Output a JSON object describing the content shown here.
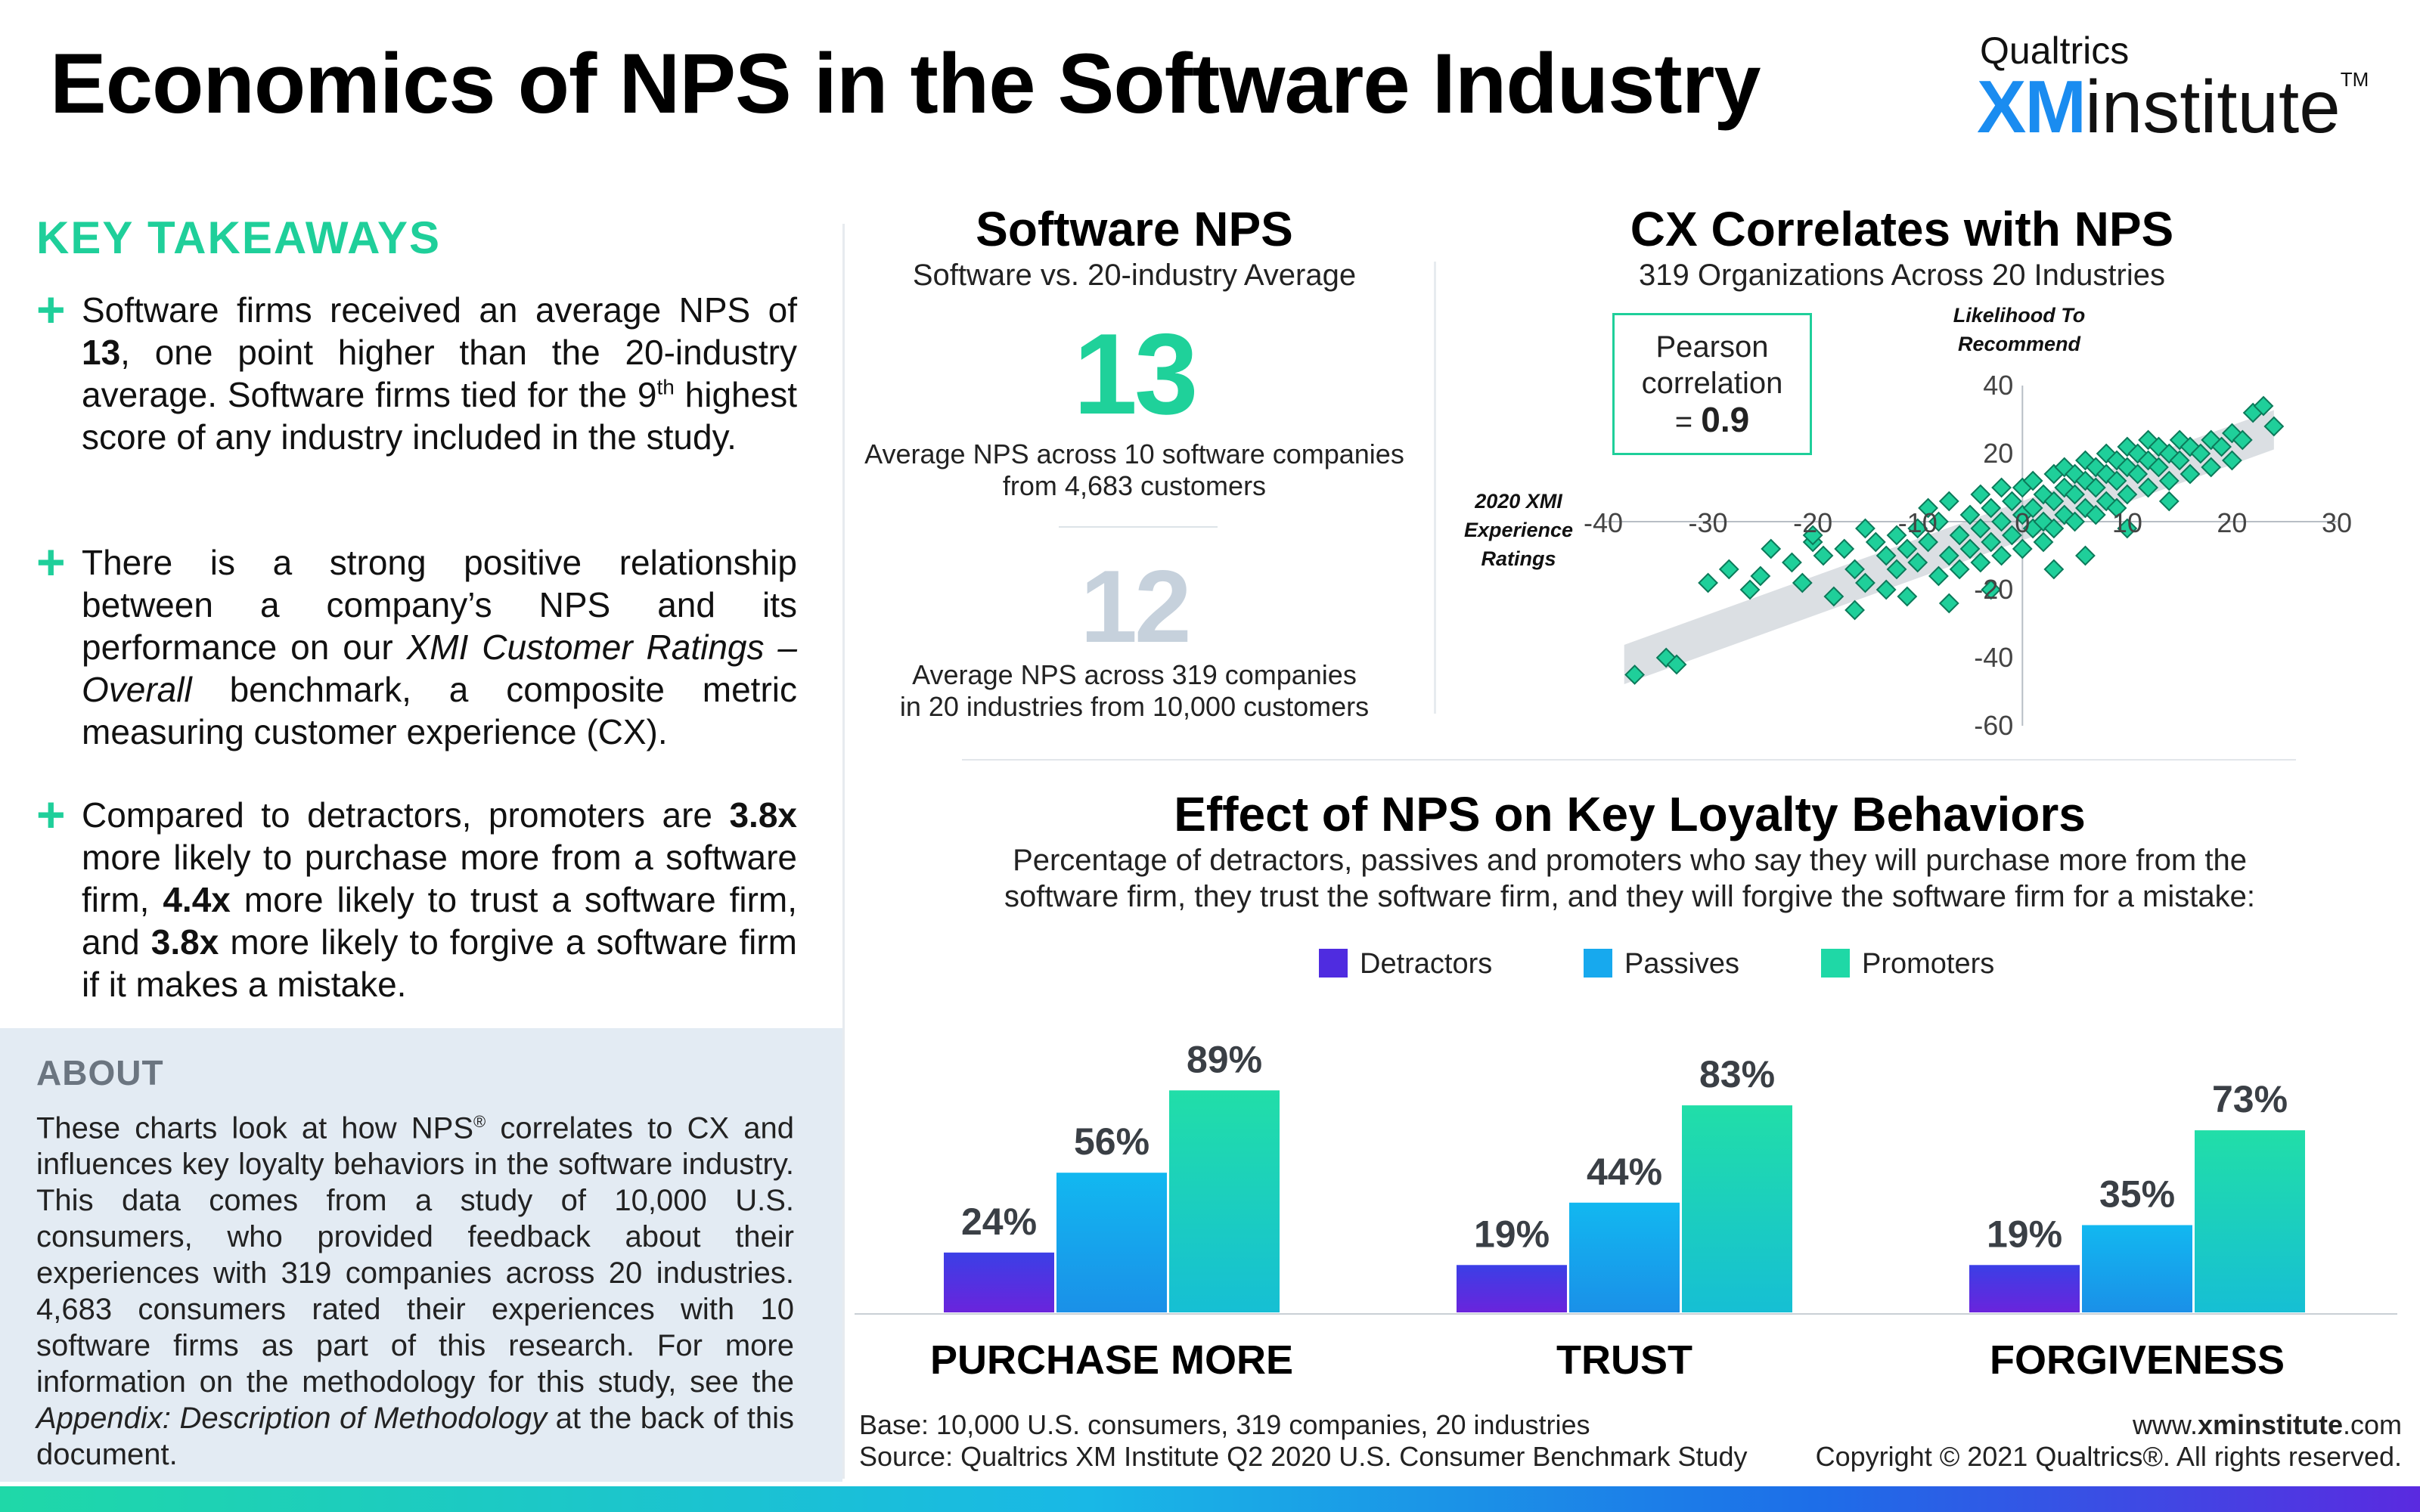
{
  "header": {
    "title": "Economics of NPS in the Software Industry",
    "brand_top": "Qualtrics",
    "brand_xm": "XM",
    "brand_institute": "institute",
    "brand_tm": "TM"
  },
  "takeaways": {
    "title": "KEY TAKEAWAYS",
    "bullet_symbol": "+",
    "items": [
      {
        "p1": "Software firms received an average NPS of ",
        "b1": "13",
        "p2": ", one point higher than the 20-industry average. Software firms tied for the 9",
        "sup": "th",
        "p3": " highest score of any industry included in the study."
      },
      {
        "p1": "There is a strong positive relationship between a company’s NPS and its performance on our ",
        "i1": "XMI Customer Ratings – Overall",
        "p2": " benchmark, a composite metric measuring customer experience (CX)."
      },
      {
        "p1": "Compared to detractors, promoters are ",
        "b1": "3.8x",
        "p2": " more likely to purchase more from a software firm, ",
        "b2": "4.4x",
        "p3": " more likely to trust a software firm, and ",
        "b3": "3.8x",
        "p4": " more likely to forgive a software firm if it makes a mistake."
      }
    ]
  },
  "about": {
    "title": "ABOUT",
    "p1": "These charts look at how NPS",
    "reg": "®",
    "p2": " correlates to CX and influences key loyalty behaviors in the software industry. This data comes from a study of 10,000 U.S. consumers, who provided feedback about their experiences with 319 companies across 20 industries. 4,683 consumers rated their experiences with 10 software firms as part of this research. For more information on the methodology for this study, see the ",
    "italic": "Appendix: Description of Methodology",
    "p3": " at the back of this document."
  },
  "software_nps": {
    "title": "Software NPS",
    "subtitle": "Software vs. 20-industry Average",
    "software_value": "13",
    "software_caption_1": "Average NPS across 10 software companies",
    "software_caption_2": "from 4,683 customers",
    "industry_value": "12",
    "industry_caption_1": "Average NPS across 319 companies",
    "industry_caption_2": "in 20 industries from 10,000 customers",
    "colors": {
      "software": "#1fd19a",
      "industry": "#c6d1dc"
    }
  },
  "cx_panel": {
    "title": "CX Correlates with NPS",
    "subtitle": "319 Organizations Across 20 Industries",
    "pearson_1": "Pearson",
    "pearson_2": "correlation",
    "pearson_eq": "= ",
    "pearson_value": "0.9"
  },
  "loyalty_panel": {
    "title": "Effect of NPS on Key Loyalty Behaviors",
    "subtitle_1": "Percentage of detractors, passives and promoters who say they will purchase more from the",
    "subtitle_2": "software firm, they trust the software firm, and they will forgive the software firm for a mistake:"
  },
  "chart_data": [
    {
      "type": "scatter",
      "xlabel": "2020 XMI Experience Ratings",
      "ylabel": "Likelihood To Recommend",
      "xlim": [
        -40,
        30
      ],
      "ylim": [
        -60,
        40
      ],
      "x_ticks": [
        -40,
        -30,
        -20,
        -10,
        0,
        10,
        20,
        30
      ],
      "y_ticks": [
        -60,
        -40,
        -20,
        0,
        20,
        40
      ],
      "trend": [
        [
          -38,
          -42
        ],
        [
          24,
          27
        ]
      ],
      "marker_color": "#1fcf9a",
      "grid": false,
      "points": [
        [
          -37,
          -45
        ],
        [
          -34,
          -40
        ],
        [
          -33,
          -42
        ],
        [
          -30,
          -18
        ],
        [
          -28,
          -14
        ],
        [
          -26,
          -20
        ],
        [
          -25,
          -16
        ],
        [
          -24,
          -8
        ],
        [
          -22,
          -12
        ],
        [
          -21,
          -18
        ],
        [
          -20,
          -6
        ],
        [
          -19,
          -10
        ],
        [
          -18,
          -22
        ],
        [
          -17,
          -8
        ],
        [
          -16,
          -14
        ],
        [
          -15,
          -2
        ],
        [
          -15,
          -18
        ],
        [
          -14,
          -6
        ],
        [
          -13,
          -10
        ],
        [
          -13,
          -20
        ],
        [
          -12,
          -4
        ],
        [
          -12,
          -14
        ],
        [
          -11,
          -8
        ],
        [
          -10,
          -2
        ],
        [
          -10,
          -12
        ],
        [
          -9,
          4
        ],
        [
          -9,
          -6
        ],
        [
          -8,
          -16
        ],
        [
          -8,
          0
        ],
        [
          -7,
          -10
        ],
        [
          -7,
          6
        ],
        [
          -6,
          -4
        ],
        [
          -6,
          -14
        ],
        [
          -5,
          2
        ],
        [
          -5,
          -8
        ],
        [
          -4,
          8
        ],
        [
          -4,
          -2
        ],
        [
          -4,
          -12
        ],
        [
          -3,
          4
        ],
        [
          -3,
          -6
        ],
        [
          -2,
          10
        ],
        [
          -2,
          0
        ],
        [
          -2,
          -10
        ],
        [
          -1,
          6
        ],
        [
          -1,
          -4
        ],
        [
          0,
          2
        ],
        [
          0,
          -8
        ],
        [
          0,
          10
        ],
        [
          1,
          4
        ],
        [
          1,
          -2
        ],
        [
          1,
          12
        ],
        [
          2,
          8
        ],
        [
          2,
          0
        ],
        [
          2,
          -6
        ],
        [
          3,
          6
        ],
        [
          3,
          14
        ],
        [
          3,
          -2
        ],
        [
          4,
          10
        ],
        [
          4,
          2
        ],
        [
          4,
          16
        ],
        [
          5,
          8
        ],
        [
          5,
          0
        ],
        [
          5,
          14
        ],
        [
          6,
          12
        ],
        [
          6,
          4
        ],
        [
          6,
          18
        ],
        [
          7,
          10
        ],
        [
          7,
          2
        ],
        [
          7,
          16
        ],
        [
          8,
          14
        ],
        [
          8,
          6
        ],
        [
          8,
          20
        ],
        [
          9,
          12
        ],
        [
          9,
          4
        ],
        [
          9,
          18
        ],
        [
          10,
          16
        ],
        [
          10,
          8
        ],
        [
          10,
          22
        ],
        [
          11,
          14
        ],
        [
          11,
          20
        ],
        [
          12,
          18
        ],
        [
          12,
          10
        ],
        [
          12,
          24
        ],
        [
          13,
          16
        ],
        [
          13,
          22
        ],
        [
          14,
          20
        ],
        [
          14,
          12
        ],
        [
          15,
          18
        ],
        [
          15,
          24
        ],
        [
          16,
          22
        ],
        [
          16,
          14
        ],
        [
          17,
          20
        ],
        [
          18,
          24
        ],
        [
          18,
          16
        ],
        [
          19,
          22
        ],
        [
          20,
          26
        ],
        [
          20,
          18
        ],
        [
          21,
          24
        ],
        [
          22,
          32
        ],
        [
          23,
          34
        ],
        [
          24,
          28
        ],
        [
          -3,
          -20
        ],
        [
          3,
          -14
        ],
        [
          -11,
          -22
        ],
        [
          -7,
          -24
        ],
        [
          6,
          -10
        ],
        [
          10,
          -2
        ],
        [
          14,
          6
        ],
        [
          -16,
          -26
        ],
        [
          -20,
          -4
        ]
      ]
    },
    {
      "type": "bar",
      "categories": [
        "PURCHASE MORE",
        "TRUST",
        "FORGIVENESS"
      ],
      "legend_position": "top",
      "series": [
        {
          "name": "Detractors",
          "values": [
            24,
            19,
            19
          ],
          "color": "#4f2ce0"
        },
        {
          "name": "Passives",
          "values": [
            56,
            44,
            35
          ],
          "color": "#17a9ee"
        },
        {
          "name": "Promoters",
          "values": [
            89,
            83,
            73
          ],
          "color": "#1fd8a6"
        }
      ],
      "value_suffix": "%",
      "ylim": [
        0,
        100
      ]
    }
  ],
  "footer": {
    "base": "Base: 10,000 U.S. consumers, 319 companies, 20 industries",
    "source": "Source: Qualtrics XM Institute Q2 2020 U.S. Consumer Benchmark Study",
    "www": "www.",
    "domain_bold": "xminstitute",
    "dotcom": ".com",
    "copyright": "Copyright © 2021 Qualtrics®. All rights reserved."
  }
}
